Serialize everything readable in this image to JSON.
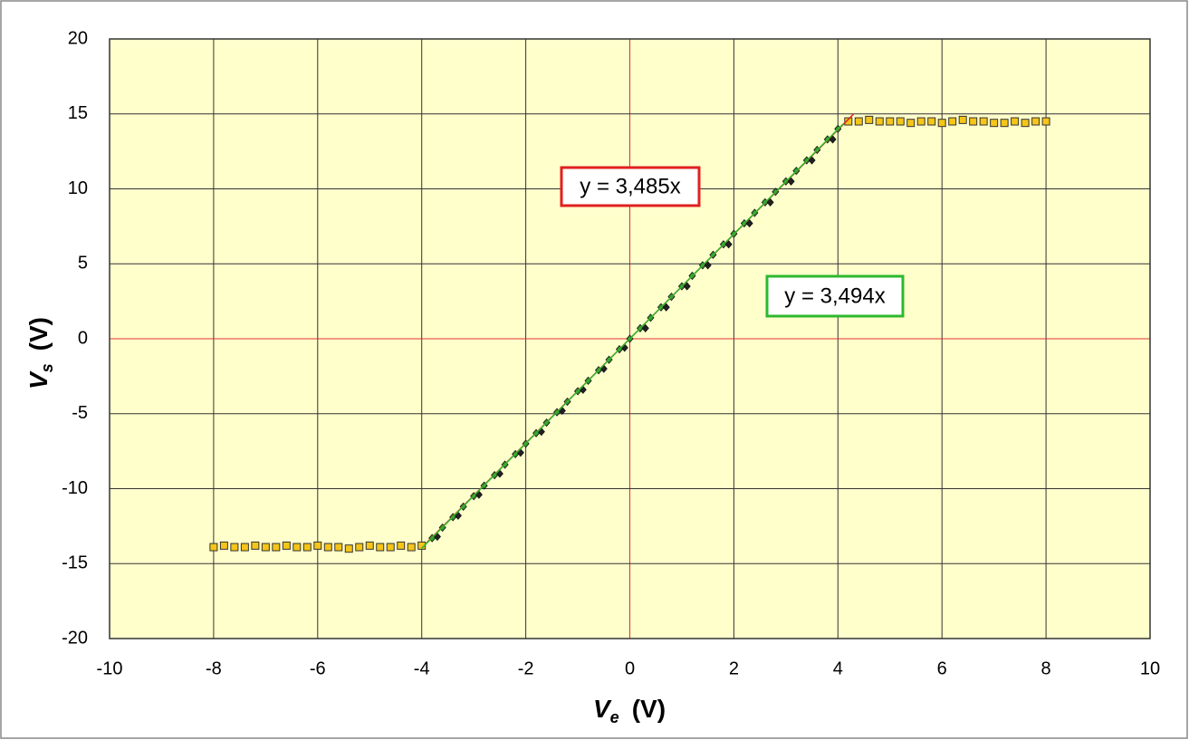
{
  "chart_data": {
    "type": "scatter",
    "xlabel": {
      "symbol": "V",
      "subscript": "e",
      "unit": "(V)"
    },
    "ylabel": {
      "symbol": "V",
      "subscript": "s",
      "unit": "(V)"
    },
    "xlim": [
      -10,
      10
    ],
    "xticks": [
      -10,
      -8,
      -6,
      -4,
      -2,
      0,
      2,
      4,
      6,
      8,
      10
    ],
    "ylim": [
      -20,
      20
    ],
    "yticks": [
      -20,
      -15,
      -10,
      -5,
      0,
      5,
      10,
      15,
      20
    ],
    "grid": true,
    "grid_color": "#333333",
    "zero_line_color": "#e03030",
    "plot_background": "#ffffcc",
    "series": [
      {
        "color": "#f5c518",
        "marker": "square",
        "x": [
          -8.0,
          -7.8,
          -7.6,
          -7.4,
          -7.2,
          -7.0,
          -6.8,
          -6.6,
          -6.4,
          -6.2,
          -6.0,
          -5.8,
          -5.6,
          -5.4,
          -5.2,
          -5.0,
          -4.8,
          -4.6,
          -4.4,
          -4.2,
          -4.0,
          4.2,
          4.4,
          4.6,
          4.8,
          5.0,
          5.2,
          5.4,
          5.6,
          5.8,
          6.0,
          6.2,
          6.4,
          6.6,
          6.8,
          7.0,
          7.2,
          7.4,
          7.6,
          7.8,
          8.0
        ],
        "values": [
          -13.9,
          -13.8,
          -13.9,
          -13.9,
          -13.8,
          -13.9,
          -13.9,
          -13.8,
          -13.9,
          -13.9,
          -13.8,
          -13.9,
          -13.9,
          -14.0,
          -13.9,
          -13.8,
          -13.9,
          -13.9,
          -13.8,
          -13.9,
          -13.8,
          14.5,
          14.5,
          14.6,
          14.5,
          14.5,
          14.5,
          14.4,
          14.5,
          14.5,
          14.4,
          14.5,
          14.6,
          14.5,
          14.5,
          14.4,
          14.4,
          14.5,
          14.4,
          14.5,
          14.5
        ]
      },
      {
        "color": "#2e9e2e",
        "marker": "diamond",
        "x": [
          -3.8,
          -3.6,
          -3.4,
          -3.2,
          -3.0,
          -2.8,
          -2.6,
          -2.4,
          -2.2,
          -2.0,
          -1.8,
          -1.6,
          -1.4,
          -1.2,
          -1.0,
          -0.8,
          -0.6,
          -0.4,
          -0.2,
          0.0,
          0.2,
          0.4,
          0.6,
          0.8,
          1.0,
          1.2,
          1.4,
          1.6,
          1.8,
          2.0,
          2.2,
          2.4,
          2.6,
          2.8,
          3.0,
          3.2,
          3.4,
          3.6,
          3.8,
          4.0
        ],
        "values": [
          -13.3,
          -12.6,
          -11.9,
          -11.2,
          -10.5,
          -9.8,
          -9.1,
          -8.4,
          -7.7,
          -7.0,
          -6.3,
          -5.6,
          -4.9,
          -4.2,
          -3.5,
          -2.8,
          -2.1,
          -1.4,
          -0.7,
          0.0,
          0.7,
          1.4,
          2.1,
          2.8,
          3.5,
          4.2,
          4.9,
          5.6,
          6.3,
          7.0,
          7.7,
          8.4,
          9.1,
          9.8,
          10.5,
          11.2,
          11.9,
          12.6,
          13.3,
          14.0
        ]
      },
      {
        "color": "#222222",
        "marker": "diamond",
        "x": [
          -3.7,
          -3.3,
          -2.9,
          -2.5,
          -2.1,
          -1.7,
          -1.3,
          -0.9,
          -0.5,
          -0.1,
          0.3,
          0.7,
          1.1,
          1.5,
          1.9,
          2.3,
          2.7,
          3.1,
          3.5,
          3.9
        ],
        "values": [
          -13.2,
          -11.8,
          -10.4,
          -9.0,
          -7.6,
          -6.2,
          -4.8,
          -3.4,
          -2.0,
          -0.6,
          0.7,
          2.1,
          3.5,
          4.9,
          6.3,
          7.7,
          9.1,
          10.5,
          11.9,
          13.3
        ]
      }
    ],
    "trendlines": [
      {
        "slope": 3.485,
        "label": "y = 3,485x",
        "color": "#e02020",
        "x_range": [
          -3.9,
          4.3
        ]
      },
      {
        "slope": 3.494,
        "label": "y = 3,494x",
        "color": "#2eb82e",
        "x_range": [
          -4.0,
          4.1
        ]
      }
    ]
  }
}
